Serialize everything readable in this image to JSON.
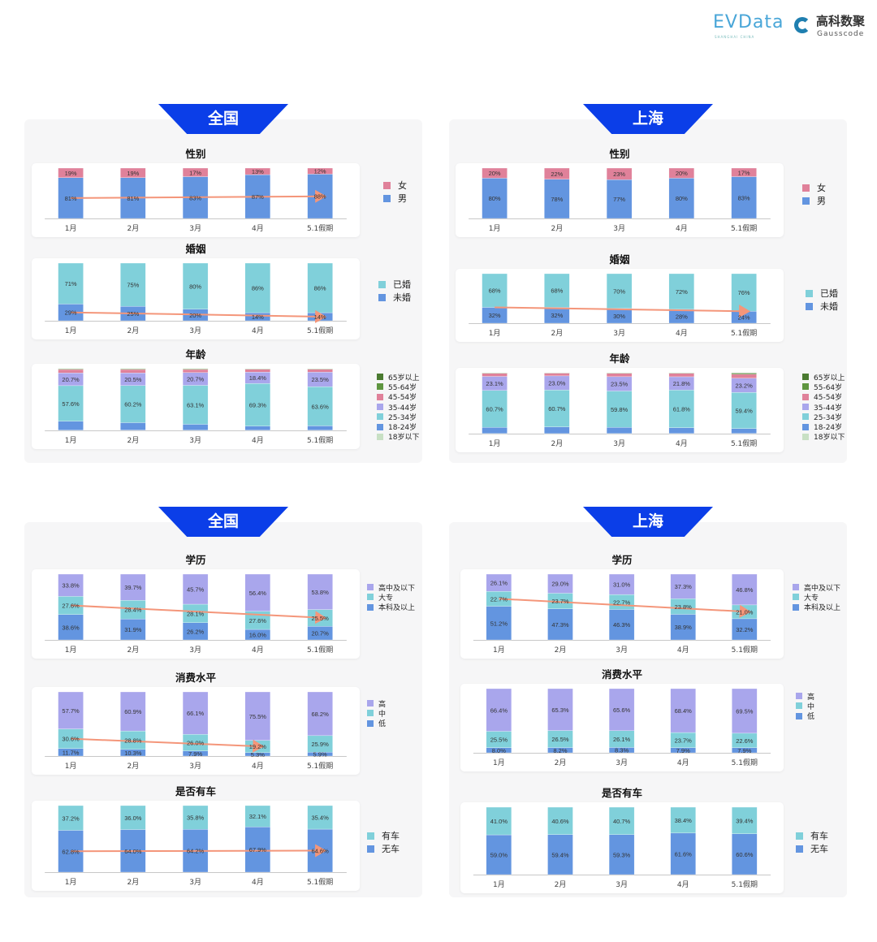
{
  "logos": {
    "evdata": "EVData",
    "evdata_sub": "SHANGHAI CHINA",
    "gauss_cn": "高科数聚",
    "gauss_en": "Gausscode"
  },
  "sections": [
    {
      "label": "全国"
    },
    {
      "label": "上海"
    },
    {
      "label": "全国"
    },
    {
      "label": "上海"
    }
  ],
  "colors": {
    "tab": "#0b3ee8",
    "arrow": "#f4967a"
  },
  "chart_data": [
    {
      "type": "bar",
      "stacked": true,
      "region": "全国",
      "title": "性别",
      "decimals": 0,
      "categories": [
        "1月",
        "2月",
        "3月",
        "4月",
        "5.1假期"
      ],
      "series": [
        {
          "name": "男",
          "color": "#6395e0",
          "values": [
            81,
            81,
            83,
            87,
            88
          ],
          "labeled": true
        },
        {
          "name": "女",
          "color": "#e0819a",
          "values": [
            19,
            19,
            17,
            13,
            12
          ],
          "labeled": true
        }
      ],
      "trend_arrow": {
        "series": "男",
        "to": "5.1假期"
      },
      "legend": "right"
    },
    {
      "type": "bar",
      "stacked": true,
      "region": "全国",
      "title": "婚姻",
      "decimals": 0,
      "categories": [
        "1月",
        "2月",
        "3月",
        "4月",
        "5.1假期"
      ],
      "series": [
        {
          "name": "未婚",
          "color": "#6395e0",
          "values": [
            29,
            25,
            20,
            14,
            14
          ],
          "labeled": true
        },
        {
          "name": "已婚",
          "color": "#80d0da",
          "values": [
            71,
            75,
            80,
            86,
            86
          ],
          "labeled": true
        }
      ],
      "trend_arrow": {
        "series": "未婚",
        "to": "5.1假期"
      },
      "legend": "right"
    },
    {
      "type": "bar",
      "stacked": true,
      "region": "全国",
      "title": "年龄",
      "decimals": 1,
      "categories": [
        "1月",
        "2月",
        "3月",
        "4月",
        "5.1假期"
      ],
      "series": [
        {
          "name": "18岁以下",
          "color": "#c8e0c4",
          "values": [
            0.4,
            0.5,
            0.4,
            0.3,
            0.3
          ]
        },
        {
          "name": "18-24岁",
          "color": "#6395e0",
          "values": [
            14.5,
            12,
            9.5,
            6.5,
            7
          ]
        },
        {
          "name": "25-34岁",
          "color": "#80d0da",
          "values": [
            57.6,
            60.2,
            63.1,
            69.3,
            63.6
          ],
          "labeled": true
        },
        {
          "name": "35-44岁",
          "color": "#a9a6ec",
          "values": [
            20.7,
            20.5,
            20.7,
            18.4,
            23.5
          ],
          "labeled": true
        },
        {
          "name": "45-54岁",
          "color": "#e0819a",
          "values": [
            5.5,
            5.5,
            5,
            4.5,
            4.5
          ]
        },
        {
          "name": "55-64岁",
          "color": "#5f9640",
          "values": [
            1,
            1,
            1,
            0.8,
            0.8
          ]
        },
        {
          "name": "65岁以上",
          "color": "#4a7a30",
          "values": [
            0.3,
            0.3,
            0.3,
            0.2,
            0.3
          ]
        }
      ],
      "legend": "right"
    },
    {
      "type": "bar",
      "stacked": true,
      "region": "上海",
      "title": "性别",
      "decimals": 0,
      "categories": [
        "1月",
        "2月",
        "3月",
        "4月",
        "5.1假期"
      ],
      "series": [
        {
          "name": "男",
          "color": "#6395e0",
          "values": [
            80,
            78,
            77,
            80,
            83
          ],
          "labeled": true
        },
        {
          "name": "女",
          "color": "#e0819a",
          "values": [
            20,
            22,
            23,
            20,
            17
          ],
          "labeled": true
        }
      ],
      "legend": "right"
    },
    {
      "type": "bar",
      "stacked": true,
      "region": "上海",
      "title": "婚姻",
      "decimals": 0,
      "categories": [
        "1月",
        "2月",
        "3月",
        "4月",
        "5.1假期"
      ],
      "series": [
        {
          "name": "未婚",
          "color": "#6395e0",
          "values": [
            32,
            32,
            30,
            28,
            24
          ],
          "labeled": true
        },
        {
          "name": "已婚",
          "color": "#80d0da",
          "values": [
            68,
            68,
            70,
            72,
            76
          ],
          "labeled": true
        }
      ],
      "trend_arrow": {
        "series": "未婚",
        "to": "5.1假期",
        "level": "top"
      },
      "legend": "right"
    },
    {
      "type": "bar",
      "stacked": true,
      "region": "上海",
      "title": "年龄",
      "decimals": 1,
      "categories": [
        "1月",
        "2月",
        "3月",
        "4月",
        "5.1假期"
      ],
      "series": [
        {
          "name": "18岁以下",
          "color": "#c8e0c4",
          "values": [
            0.2,
            0.1,
            0.2,
            0.3,
            0.4
          ]
        },
        {
          "name": "18-24岁",
          "color": "#6395e0",
          "values": [
            10,
            11,
            10,
            9.5,
            8
          ]
        },
        {
          "name": "25-34岁",
          "color": "#80d0da",
          "values": [
            60.7,
            60.7,
            59.8,
            61.8,
            59.4
          ],
          "labeled": true
        },
        {
          "name": "35-44岁",
          "color": "#a9a6ec",
          "values": [
            23.1,
            23.0,
            23.5,
            21.8,
            23.2
          ],
          "labeled": true
        },
        {
          "name": "45-54岁",
          "color": "#e0819a",
          "values": [
            5,
            4.5,
            5.5,
            5.5,
            6.5
          ]
        },
        {
          "name": "55-64岁",
          "color": "#5f9640",
          "values": [
            0.8,
            0.5,
            0.8,
            0.8,
            1.5
          ]
        },
        {
          "name": "65岁以上",
          "color": "#4a7a30",
          "values": [
            0.2,
            0.2,
            0.2,
            0.3,
            1.0
          ]
        }
      ],
      "legend": "right"
    },
    {
      "type": "bar",
      "stacked": true,
      "region": "全国",
      "title": "学历",
      "decimals": 1,
      "categories": [
        "1月",
        "2月",
        "3月",
        "4月",
        "5.1假期"
      ],
      "series": [
        {
          "name": "本科及以上",
          "color": "#6395e0",
          "values": [
            38.6,
            31.9,
            26.2,
            16.0,
            20.7
          ],
          "labeled": true
        },
        {
          "name": "大专",
          "color": "#80d0da",
          "values": [
            27.6,
            28.4,
            28.1,
            27.6,
            25.5
          ],
          "labeled": true
        },
        {
          "name": "高中及以下",
          "color": "#a9a6ec",
          "values": [
            33.8,
            39.7,
            45.7,
            56.4,
            53.8
          ],
          "labeled": true
        }
      ],
      "trend_arrow": {
        "series": "大专",
        "to": "5.1假期"
      },
      "legend": "right"
    },
    {
      "type": "bar",
      "stacked": true,
      "region": "全国",
      "title": "消费水平",
      "decimals": 1,
      "categories": [
        "1月",
        "2月",
        "3月",
        "4月",
        "5.1假期"
      ],
      "series": [
        {
          "name": "低",
          "color": "#6395e0",
          "values": [
            11.7,
            10.3,
            7.9,
            5.3,
            5.9
          ],
          "labeled": true
        },
        {
          "name": "中",
          "color": "#80d0da",
          "values": [
            30.6,
            28.8,
            26.0,
            19.2,
            25.9
          ],
          "labeled": true
        },
        {
          "name": "高",
          "color": "#a9a6ec",
          "values": [
            57.7,
            60.9,
            66.1,
            75.5,
            68.2
          ],
          "labeled": true
        }
      ],
      "trend_arrow": {
        "series": "中",
        "to": "4月"
      },
      "legend": "right"
    },
    {
      "type": "bar",
      "stacked": true,
      "region": "全国",
      "title": "是否有车",
      "decimals": 1,
      "categories": [
        "1月",
        "2月",
        "3月",
        "4月",
        "5.1假期"
      ],
      "series": [
        {
          "name": "无车",
          "color": "#6395e0",
          "values": [
            62.8,
            64.0,
            64.2,
            67.9,
            64.6
          ],
          "labeled": true
        },
        {
          "name": "有车",
          "color": "#80d0da",
          "values": [
            37.2,
            36.0,
            35.8,
            32.1,
            35.4
          ],
          "labeled": true
        }
      ],
      "trend_arrow": {
        "series": "无车",
        "to": "5.1假期"
      },
      "legend": "right"
    },
    {
      "type": "bar",
      "stacked": true,
      "region": "上海",
      "title": "学历",
      "decimals": 1,
      "categories": [
        "1月",
        "2月",
        "3月",
        "4月",
        "5.1假期"
      ],
      "series": [
        {
          "name": "本科及以上",
          "color": "#6395e0",
          "values": [
            51.2,
            47.3,
            46.3,
            38.9,
            32.2
          ],
          "labeled": true
        },
        {
          "name": "大专",
          "color": "#80d0da",
          "values": [
            22.7,
            23.7,
            22.7,
            23.8,
            21.0
          ],
          "labeled": true
        },
        {
          "name": "高中及以下",
          "color": "#a9a6ec",
          "values": [
            26.1,
            29.0,
            31.0,
            37.3,
            46.8
          ],
          "labeled": true
        }
      ],
      "trend_arrow": {
        "series": "大专",
        "to": "5.1假期"
      },
      "legend": "right"
    },
    {
      "type": "bar",
      "stacked": true,
      "region": "上海",
      "title": "消费水平",
      "decimals": 1,
      "categories": [
        "1月",
        "2月",
        "3月",
        "4月",
        "5.1假期"
      ],
      "series": [
        {
          "name": "低",
          "color": "#6395e0",
          "values": [
            8.0,
            8.2,
            8.3,
            7.9,
            7.9
          ],
          "labeled": true
        },
        {
          "name": "中",
          "color": "#80d0da",
          "values": [
            25.5,
            26.5,
            26.1,
            23.7,
            22.6
          ],
          "labeled": true
        },
        {
          "name": "高",
          "color": "#a9a6ec",
          "values": [
            66.4,
            65.3,
            65.6,
            68.4,
            69.5
          ],
          "labeled": true
        }
      ],
      "legend": "right"
    },
    {
      "type": "bar",
      "stacked": true,
      "region": "上海",
      "title": "是否有车",
      "decimals": 1,
      "categories": [
        "1月",
        "2月",
        "3月",
        "4月",
        "5.1假期"
      ],
      "series": [
        {
          "name": "无车",
          "color": "#6395e0",
          "values": [
            59.0,
            59.4,
            59.3,
            61.6,
            60.6
          ],
          "labeled": true
        },
        {
          "name": "有车",
          "color": "#80d0da",
          "values": [
            41.0,
            40.6,
            40.7,
            38.4,
            39.4
          ],
          "labeled": true
        }
      ],
      "legend": "right"
    }
  ]
}
